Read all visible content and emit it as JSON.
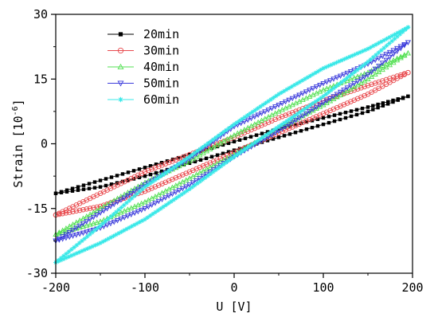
{
  "chart_data": {
    "type": "scatter",
    "title": "",
    "xlabel": "U [V]",
    "ylabel": "Strain [10",
    "ylabel_exp": "-6",
    "ylabel_close": "]",
    "xlim": [
      -200,
      200
    ],
    "ylim": [
      -30,
      30
    ],
    "xticks": [
      -200,
      -100,
      0,
      100,
      200
    ],
    "yticks": [
      -30,
      -15,
      0,
      15,
      30
    ],
    "xtick_labels": [
      "-200",
      "-100",
      "0",
      "100",
      "200"
    ],
    "ytick_labels": [
      "-30",
      "-15",
      "0",
      "15",
      "30"
    ],
    "grid": false,
    "legend_position": "top-left",
    "series": [
      {
        "name": "20min",
        "color": "#000000",
        "marker": "filled-square",
        "upper": {
          "x": [
            -200,
            -150,
            -100,
            -50,
            0,
            50,
            100,
            150,
            195
          ],
          "y": [
            -11.5,
            -8.5,
            -5.5,
            -2.5,
            0.5,
            3.5,
            6,
            8.5,
            11
          ]
        },
        "lower": {
          "x": [
            195,
            150,
            100,
            50,
            0,
            -50,
            -100,
            -150,
            -200
          ],
          "y": [
            11,
            7.5,
            4.5,
            1.5,
            -1.5,
            -4.5,
            -7.5,
            -10,
            -11.5
          ]
        }
      },
      {
        "name": "30min",
        "color": "#e8494d",
        "marker": "open-circle",
        "upper": {
          "x": [
            -200,
            -150,
            -100,
            -50,
            0,
            50,
            100,
            150,
            195
          ],
          "y": [
            -16.5,
            -11.5,
            -6.5,
            -2.5,
            1.5,
            6,
            10,
            13.5,
            16.5
          ]
        },
        "lower": {
          "x": [
            195,
            150,
            100,
            50,
            0,
            -50,
            -100,
            -150,
            -200
          ],
          "y": [
            16.5,
            11.5,
            7,
            2.5,
            -2,
            -6.5,
            -11,
            -14.5,
            -16.5
          ]
        }
      },
      {
        "name": "40min",
        "color": "#54e054",
        "marker": "open-triangle-up",
        "upper": {
          "x": [
            -200,
            -150,
            -100,
            -50,
            0,
            50,
            100,
            150,
            195
          ],
          "y": [
            -21,
            -15,
            -9,
            -4,
            2,
            7.5,
            12.5,
            16.5,
            21
          ]
        },
        "lower": {
          "x": [
            195,
            150,
            100,
            50,
            0,
            -50,
            -100,
            -150,
            -200
          ],
          "y": [
            21,
            15,
            9,
            3.5,
            -2.5,
            -8,
            -13.5,
            -18,
            -21
          ]
        }
      },
      {
        "name": "50min",
        "color": "#3b3bdb",
        "marker": "open-triangle-down",
        "upper": {
          "x": [
            -200,
            -150,
            -100,
            -50,
            0,
            50,
            100,
            150,
            195
          ],
          "y": [
            -22.5,
            -16,
            -9.5,
            -3.5,
            4,
            9,
            14,
            18.5,
            23.5
          ]
        },
        "lower": {
          "x": [
            195,
            150,
            100,
            50,
            0,
            -50,
            -100,
            -150,
            -200
          ],
          "y": [
            23.5,
            16,
            9.5,
            3,
            -3,
            -9.5,
            -15,
            -19.5,
            -22.5
          ]
        }
      },
      {
        "name": "60min",
        "color": "#38e8e8",
        "marker": "star",
        "upper": {
          "x": [
            -200,
            -150,
            -100,
            -50,
            0,
            50,
            100,
            150,
            195
          ],
          "y": [
            -27.5,
            -19,
            -10,
            -3,
            4.5,
            11.5,
            17.5,
            22,
            27
          ]
        },
        "lower": {
          "x": [
            195,
            150,
            100,
            50,
            0,
            -50,
            -100,
            -150,
            -200
          ],
          "y": [
            27,
            19,
            11,
            4,
            -3,
            -10.5,
            -17.5,
            -23,
            -27.5
          ]
        }
      }
    ]
  }
}
